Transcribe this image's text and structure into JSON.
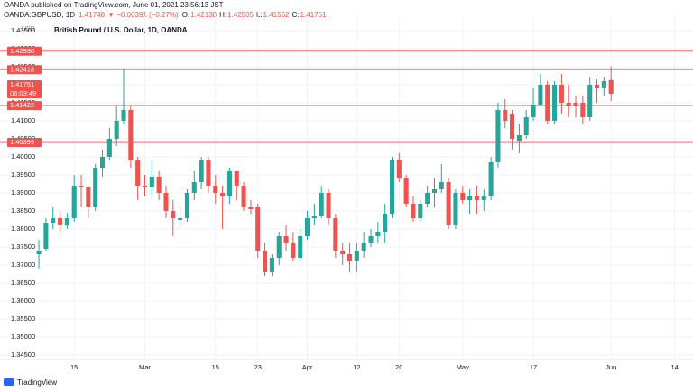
{
  "header": {
    "publisher": "OANDA published on TradingView.com, June 01, 2021 23:56:13 JST",
    "symbol": "OANDA:GBPUSD, 1D",
    "last": "1.41748",
    "change": "▼ −0.00391 (−0.27%)",
    "ohlc": [
      "O:",
      "1.42130",
      "H:",
      "1.42505",
      "L:",
      "1.41552",
      "C:",
      "1.41751"
    ]
  },
  "footer": {
    "logo": "TradingView"
  },
  "chart_data": {
    "type": "candlestick",
    "title": "British Pound / U.S. Dollar, 1D, OANDA",
    "currency": "USD",
    "up_color": "#26a69a",
    "down_color": "#ef5350",
    "grid": true,
    "categories": [
      null,
      null,
      null,
      null,
      null,
      null,
      null,
      null,
      null,
      null,
      null,
      null,
      null,
      null,
      null,
      null,
      null,
      null,
      null,
      null,
      null,
      null,
      null,
      null,
      null,
      null,
      null,
      null,
      null,
      null,
      null,
      null,
      null,
      null,
      null,
      null,
      null,
      null,
      null,
      null,
      null,
      null,
      null,
      null,
      null,
      null,
      null,
      null,
      null,
      null,
      null,
      null,
      null,
      null,
      null,
      null,
      null,
      null,
      null,
      null,
      null,
      null,
      null,
      null,
      null,
      null,
      null,
      null,
      null,
      null,
      null,
      null,
      null,
      null,
      null,
      null,
      null,
      null,
      null,
      null,
      null,
      null
    ],
    "open": [
      1.373,
      1.3745,
      1.3815,
      1.383,
      1.381,
      1.383,
      1.392,
      1.3915,
      1.386,
      1.397,
      1.4,
      1.405,
      1.41,
      1.413,
      1.399,
      1.392,
      1.3915,
      1.3945,
      1.39,
      1.385,
      1.3825,
      1.383,
      1.39,
      1.393,
      1.399,
      1.392,
      1.39,
      1.389,
      1.396,
      1.392,
      1.386,
      1.386,
      1.374,
      1.368,
      1.372,
      1.378,
      1.376,
      1.372,
      1.378,
      1.383,
      1.3835,
      1.39,
      1.383,
      1.374,
      1.373,
      1.371,
      1.374,
      1.376,
      1.378,
      1.379,
      1.384,
      1.399,
      1.394,
      1.387,
      1.383,
      1.387,
      1.39,
      1.391,
      1.393,
      1.381,
      1.39,
      1.388,
      1.389,
      1.388,
      1.389,
      1.3985,
      1.413,
      1.412,
      1.4045,
      1.406,
      1.411,
      1.4145,
      1.42,
      1.41,
      1.42,
      1.415,
      1.415,
      1.415,
      1.411,
      1.42,
      1.419,
      1.4213
    ],
    "high": [
      1.377,
      1.383,
      1.386,
      1.385,
      1.3845,
      1.395,
      1.395,
      1.392,
      1.398,
      1.402,
      1.408,
      1.414,
      1.4241,
      1.414,
      1.4,
      1.395,
      1.399,
      1.396,
      1.392,
      1.388,
      1.386,
      1.391,
      1.396,
      1.4,
      1.4,
      1.395,
      1.392,
      1.397,
      1.396,
      1.393,
      1.388,
      1.387,
      1.376,
      1.373,
      1.379,
      1.381,
      1.379,
      1.38,
      1.385,
      1.387,
      1.392,
      1.391,
      1.384,
      1.376,
      1.376,
      1.376,
      1.379,
      1.38,
      1.382,
      1.387,
      1.4,
      1.401,
      1.395,
      1.389,
      1.388,
      1.392,
      1.394,
      1.398,
      1.394,
      1.391,
      1.392,
      1.391,
      1.392,
      1.391,
      1.4,
      1.415,
      1.416,
      1.413,
      1.409,
      1.413,
      1.419,
      1.423,
      1.421,
      1.421,
      1.423,
      1.42,
      1.417,
      1.417,
      1.422,
      1.4215,
      1.422,
      1.42505
    ],
    "low": [
      1.369,
      1.374,
      1.38,
      1.379,
      1.38,
      1.382,
      1.386,
      1.383,
      1.385,
      1.3945,
      1.399,
      1.403,
      1.409,
      1.397,
      1.388,
      1.389,
      1.389,
      1.388,
      1.383,
      1.378,
      1.38,
      1.382,
      1.388,
      1.391,
      1.39,
      1.387,
      1.38,
      1.387,
      1.388,
      1.385,
      1.384,
      1.372,
      1.367,
      1.367,
      1.37,
      1.374,
      1.371,
      1.371,
      1.377,
      1.381,
      1.383,
      1.381,
      1.372,
      1.37,
      1.368,
      1.368,
      1.372,
      1.375,
      1.376,
      1.376,
      1.383,
      1.393,
      1.386,
      1.382,
      1.382,
      1.386,
      1.386,
      1.39,
      1.38,
      1.38,
      1.387,
      1.384,
      1.384,
      1.385,
      1.388,
      1.397,
      1.408,
      1.402,
      1.401,
      1.405,
      1.41,
      1.414,
      1.409,
      1.409,
      1.412,
      1.411,
      1.411,
      1.409,
      1.41,
      1.415,
      1.417,
      1.41552
    ],
    "close": [
      1.374,
      1.3815,
      1.383,
      1.381,
      1.383,
      1.392,
      1.3915,
      1.386,
      1.397,
      1.4,
      1.405,
      1.41,
      1.413,
      1.399,
      1.392,
      1.3915,
      1.3945,
      1.39,
      1.385,
      1.383,
      1.383,
      1.39,
      1.393,
      1.399,
      1.392,
      1.39,
      1.389,
      1.396,
      1.392,
      1.386,
      1.3855,
      1.374,
      1.368,
      1.372,
      1.378,
      1.376,
      1.372,
      1.378,
      1.383,
      1.3835,
      1.39,
      1.383,
      1.374,
      1.373,
      1.371,
      1.374,
      1.376,
      1.378,
      1.379,
      1.384,
      1.399,
      1.394,
      1.387,
      1.383,
      1.387,
      1.39,
      1.391,
      1.393,
      1.381,
      1.39,
      1.388,
      1.389,
      1.388,
      1.389,
      1.3985,
      1.413,
      1.41,
      1.405,
      1.406,
      1.411,
      1.4145,
      1.42,
      1.41,
      1.42,
      1.415,
      1.414,
      1.414,
      1.411,
      1.42,
      1.419,
      1.421,
      1.41751
    ],
    "xlim": [
      -5.5,
      92.6
    ],
    "xticks": [
      {
        "value": 5,
        "label": "15"
      },
      {
        "value": 15,
        "label": "Mar"
      },
      {
        "value": 25,
        "label": "15"
      },
      {
        "value": 31,
        "label": "23"
      },
      {
        "value": 38,
        "label": "Apr"
      },
      {
        "value": 45,
        "label": "12"
      },
      {
        "value": 51,
        "label": "20"
      },
      {
        "value": 60,
        "label": "May"
      },
      {
        "value": 70,
        "label": "17"
      },
      {
        "value": 81,
        "label": "Jun"
      },
      {
        "value": 90,
        "label": "14"
      }
    ],
    "ylim": [
      1.344,
      1.4365
    ],
    "yticks": [
      {
        "value": 1.345,
        "label": "1.34500"
      },
      {
        "value": 1.35,
        "label": "1.35000"
      },
      {
        "value": 1.355,
        "label": "1.35500"
      },
      {
        "value": 1.36,
        "label": "1.36000"
      },
      {
        "value": 1.365,
        "label": "1.36500"
      },
      {
        "value": 1.37,
        "label": "1.37000"
      },
      {
        "value": 1.375,
        "label": "1.37500"
      },
      {
        "value": 1.38,
        "label": "1.38000"
      },
      {
        "value": 1.385,
        "label": "1.38500"
      },
      {
        "value": 1.39,
        "label": "1.39000"
      },
      {
        "value": 1.395,
        "label": "1.39500"
      },
      {
        "value": 1.4,
        "label": "1.40000"
      },
      {
        "value": 1.405,
        "label": "1.40500"
      },
      {
        "value": 1.41,
        "label": "1.41000"
      },
      {
        "value": 1.415,
        "label": "1.41500"
      },
      {
        "value": 1.42,
        "label": "1.42000"
      },
      {
        "value": 1.425,
        "label": "1.42500"
      },
      {
        "value": 1.43,
        "label": "1.43000"
      },
      {
        "value": 1.435,
        "label": "1.43500"
      }
    ],
    "hlines": [
      {
        "value": 1.4293,
        "label": "1.42930"
      },
      {
        "value": 1.42418,
        "label": "1.42418"
      },
      {
        "value": 1.41422,
        "label": "1.41422"
      },
      {
        "value": 1.40399,
        "label": "1.40399"
      }
    ],
    "hline_color": "#ef5350",
    "last_price": {
      "value": 1.41751,
      "label": "1.41751",
      "countdown": "06:03:49"
    }
  }
}
